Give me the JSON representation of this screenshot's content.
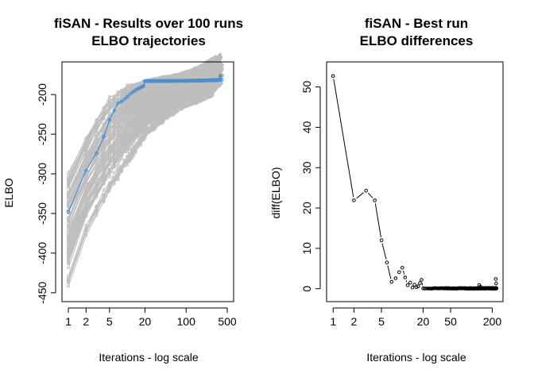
{
  "chart_data": [
    {
      "type": "line",
      "title": "fiSAN - Results over 100 runs",
      "subtitle": "ELBO trajectories",
      "xlabel": "Iterations - log scale",
      "ylabel": "ELBO",
      "x_scale": "log",
      "xlim": [
        1,
        500
      ],
      "ylim": [
        -450,
        -170
      ],
      "x_ticks": [
        1,
        2,
        5,
        20,
        100,
        500
      ],
      "x_tick_labels": [
        "1",
        "2",
        "5",
        "20",
        "100",
        "500"
      ],
      "y_ticks": [
        -450,
        -400,
        -350,
        -300,
        -250,
        -200
      ],
      "y_tick_labels": [
        "-450",
        "-400",
        "-350",
        "-300",
        "-250",
        "-200"
      ],
      "grid": false,
      "colors": {
        "runs": "#bebebe",
        "best": "#4a8fd0"
      },
      "series": [
        {
          "kind": "other-runs",
          "x": [
            1,
            2,
            3,
            5,
            10,
            20,
            50,
            100,
            200,
            400
          ],
          "values_min": [
            -445,
            -380,
            -355,
            -325,
            -290,
            -255,
            -230,
            -218,
            -212,
            -210
          ],
          "values_max": [
            -300,
            -255,
            -230,
            -205,
            -190,
            -185,
            -182,
            -180,
            -178,
            -176
          ]
        },
        {
          "kind": "best-run",
          "x": [
            1,
            2,
            3,
            4,
            5,
            6,
            7,
            8,
            9,
            10,
            11,
            12,
            13,
            14,
            15,
            16,
            17,
            18,
            19,
            20,
            22,
            25,
            30,
            40,
            60,
            100,
            150,
            200,
            250,
            300,
            350,
            380,
            400
          ],
          "values": [
            -348,
            -296,
            -274,
            -253,
            -232,
            -220,
            -211,
            -209,
            -206,
            -203,
            -200,
            -198,
            -196,
            -194,
            -193,
            -192,
            -191,
            -190,
            -189,
            -183,
            -183,
            -183,
            -183,
            -183,
            -183,
            -183,
            -182.5,
            -182,
            -182,
            -182,
            -181.5,
            -176,
            -181.5
          ]
        }
      ]
    },
    {
      "type": "scatter",
      "title": "fiSAN - Best run",
      "subtitle": "ELBO differences",
      "xlabel": "Iterations - log scale",
      "ylabel": "diff(ELBO)",
      "x_scale": "log",
      "xlim": [
        1,
        230
      ],
      "ylim": [
        -1,
        54
      ],
      "x_ticks": [
        1,
        2,
        5,
        20,
        50,
        200
      ],
      "x_tick_labels": [
        "1",
        "2",
        "5",
        "20",
        "50",
        "200"
      ],
      "y_ticks": [
        0,
        10,
        20,
        30,
        40,
        50
      ],
      "y_tick_labels": [
        "0",
        "10",
        "20",
        "30",
        "40",
        "50"
      ],
      "grid": false,
      "points": {
        "x": [
          1,
          2,
          3,
          4,
          5,
          6,
          7,
          8,
          9,
          10,
          11,
          12,
          13,
          14,
          15,
          16,
          17,
          18,
          19,
          20,
          21
        ],
        "y": [
          52.7,
          21.9,
          24.3,
          21.9,
          12.0,
          6.5,
          1.7,
          2.6,
          4.1,
          5.2,
          2.8,
          0.9,
          1.5,
          0.3,
          1.0,
          0.4,
          0.6,
          1.4,
          2.2,
          0.1,
          0.05
        ]
      },
      "tail_points": {
        "x_from": 22,
        "x_to": 230,
        "y": 0.02,
        "bumps": [
          [
            130,
            0.9
          ],
          [
            135,
            0.5
          ],
          [
            225,
            2.4
          ],
          [
            228,
            1.3
          ]
        ]
      }
    }
  ]
}
